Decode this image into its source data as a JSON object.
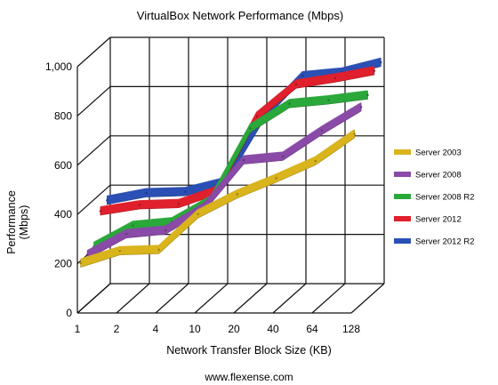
{
  "chart_data": {
    "type": "line",
    "style": "3d-ribbon",
    "title": "VirtualBox Network Performance (Mbps)",
    "xlabel": "Network Transfer Block Size (KB)",
    "ylabel": [
      "Performance",
      "(Mbps)"
    ],
    "categories": [
      "1",
      "2",
      "4",
      "10",
      "20",
      "40",
      "64",
      "128"
    ],
    "y_ticks": [
      "0",
      "200",
      "400",
      "600",
      "800",
      "1,000"
    ],
    "ylim": [
      0,
      1000
    ],
    "grid": true,
    "legend_position": "right",
    "series": [
      {
        "name": "Server 2003",
        "color": "#d9b41c",
        "values": [
          190,
          240,
          245,
          390,
          470,
          535,
          605,
          715
        ]
      },
      {
        "name": "Server 2008",
        "color": "#8a4aa8",
        "values": [
          200,
          285,
          300,
          395,
          585,
          600,
          705,
          800
        ]
      },
      {
        "name": "Server 2008 R2",
        "color": "#2aa83a",
        "values": [
          210,
          295,
          310,
          400,
          690,
          790,
          805,
          825
        ]
      },
      {
        "name": "Server 2012",
        "color": "#e0202c",
        "values": [
          330,
          355,
          360,
          415,
          715,
          845,
          870,
          900
        ]
      },
      {
        "name": "Server 2012 R2",
        "color": "#2a4fb5",
        "values": [
          350,
          380,
          385,
          425,
          690,
          855,
          870,
          910
        ]
      }
    ]
  },
  "footer": "www.flexense.com"
}
